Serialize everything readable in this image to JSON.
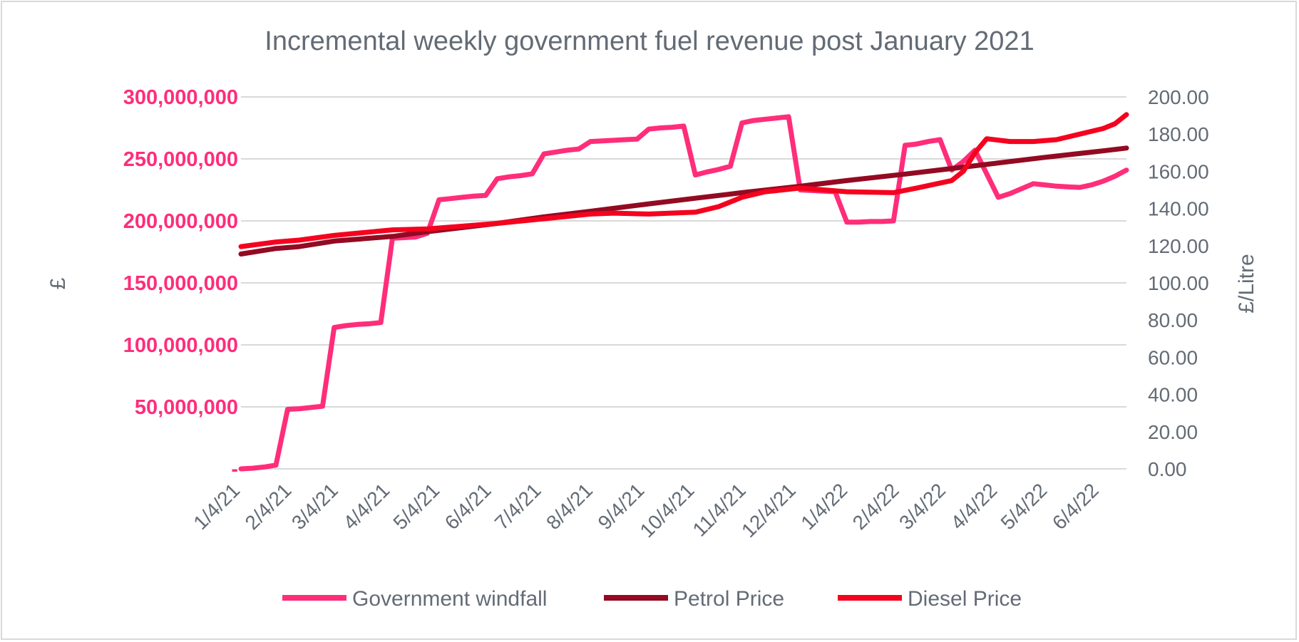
{
  "colors": {
    "windfall": "#ff2d7a",
    "petrol": "#930a22",
    "diesel": "#f4031f",
    "text": "#636b75",
    "grid": "#d9d9d9"
  },
  "chart_data": {
    "type": "line",
    "title": "Incremental weekly government fuel revenue post January 2021",
    "ylabel": "£",
    "y2label": "£/Litre",
    "ylim": [
      0,
      300000000
    ],
    "y2lim": [
      0,
      200
    ],
    "grid": true,
    "legend_position": "bottom",
    "x_ticks": [
      "1/4/21",
      "2/4/21",
      "3/4/21",
      "4/4/21",
      "5/4/21",
      "6/4/21",
      "7/4/21",
      "8/4/21",
      "9/4/21",
      "10/4/21",
      "11/4/21",
      "12/4/21",
      "1/4/22",
      "2/4/22",
      "3/4/22",
      "4/4/22",
      "5/4/22",
      "6/4/22"
    ],
    "y_ticks": [
      "-",
      "50,000,000",
      "100,000,000",
      "150,000,000",
      "200,000,000",
      "250,000,000",
      "300,000,000"
    ],
    "y_tick_values": [
      0,
      50000000,
      100000000,
      150000000,
      200000000,
      250000000,
      300000000
    ],
    "y2_ticks": [
      "0.00",
      "20.00",
      "40.00",
      "60.00",
      "80.00",
      "100.00",
      "120.00",
      "140.00",
      "160.00",
      "180.00",
      "200.00"
    ],
    "y2_tick_values": [
      0,
      20,
      40,
      60,
      80,
      100,
      120,
      140,
      160,
      180,
      200
    ],
    "series": [
      {
        "name": "Government windfall",
        "axis": "left",
        "color": "#ff2d7a",
        "points": [
          [
            "2021-01-04",
            0
          ],
          [
            "2021-01-11",
            500000
          ],
          [
            "2021-01-18",
            1500000
          ],
          [
            "2021-01-25",
            3000000
          ],
          [
            "2021-02-01",
            48000000
          ],
          [
            "2021-02-08",
            48500000
          ],
          [
            "2021-02-15",
            49500000
          ],
          [
            "2021-02-22",
            50500000
          ],
          [
            "2021-03-01",
            114000000
          ],
          [
            "2021-03-08",
            115500000
          ],
          [
            "2021-03-15",
            116500000
          ],
          [
            "2021-03-22",
            117000000
          ],
          [
            "2021-03-29",
            118000000
          ],
          [
            "2021-04-05",
            186000000
          ],
          [
            "2021-04-12",
            186500000
          ],
          [
            "2021-04-19",
            187000000
          ],
          [
            "2021-04-26",
            190000000
          ],
          [
            "2021-05-03",
            217000000
          ],
          [
            "2021-05-10",
            218000000
          ],
          [
            "2021-05-17",
            219000000
          ],
          [
            "2021-05-24",
            220000000
          ],
          [
            "2021-05-31",
            220500000
          ],
          [
            "2021-06-07",
            234000000
          ],
          [
            "2021-06-14",
            235500000
          ],
          [
            "2021-06-21",
            236500000
          ],
          [
            "2021-06-28",
            238000000
          ],
          [
            "2021-07-05",
            254000000
          ],
          [
            "2021-07-12",
            255500000
          ],
          [
            "2021-07-19",
            257000000
          ],
          [
            "2021-07-26",
            258000000
          ],
          [
            "2021-08-02",
            264000000
          ],
          [
            "2021-08-09",
            264500000
          ],
          [
            "2021-08-16",
            265000000
          ],
          [
            "2021-08-23",
            265500000
          ],
          [
            "2021-08-30",
            266000000
          ],
          [
            "2021-09-06",
            274000000
          ],
          [
            "2021-09-13",
            275000000
          ],
          [
            "2021-09-20",
            275500000
          ],
          [
            "2021-09-27",
            276500000
          ],
          [
            "2021-10-04",
            237000000
          ],
          [
            "2021-10-11",
            239500000
          ],
          [
            "2021-10-18",
            241500000
          ],
          [
            "2021-10-25",
            244000000
          ],
          [
            "2021-11-01",
            279000000
          ],
          [
            "2021-11-08",
            281000000
          ],
          [
            "2021-11-15",
            282000000
          ],
          [
            "2021-11-22",
            283000000
          ],
          [
            "2021-11-29",
            284000000
          ],
          [
            "2021-12-06",
            225000000
          ],
          [
            "2021-12-13",
            224500000
          ],
          [
            "2021-12-20",
            224000000
          ],
          [
            "2021-12-27",
            223500000
          ],
          [
            "2022-01-03",
            199000000
          ],
          [
            "2022-01-10",
            199000000
          ],
          [
            "2022-01-17",
            199500000
          ],
          [
            "2022-01-24",
            199500000
          ],
          [
            "2022-01-31",
            200000000
          ],
          [
            "2022-02-07",
            261000000
          ],
          [
            "2022-02-14",
            262000000
          ],
          [
            "2022-02-21",
            264000000
          ],
          [
            "2022-02-28",
            265500000
          ],
          [
            "2022-03-07",
            241000000
          ],
          [
            "2022-03-14",
            248000000
          ],
          [
            "2022-03-21",
            257000000
          ],
          [
            "2022-04-04",
            219000000
          ],
          [
            "2022-04-11",
            222000000
          ],
          [
            "2022-04-18",
            226000000
          ],
          [
            "2022-04-25",
            230000000
          ],
          [
            "2022-05-02",
            229000000
          ],
          [
            "2022-05-09",
            228000000
          ],
          [
            "2022-05-16",
            227500000
          ],
          [
            "2022-05-23",
            227000000
          ],
          [
            "2022-05-30",
            229000000
          ],
          [
            "2022-06-06",
            232000000
          ],
          [
            "2022-06-13",
            236000000
          ],
          [
            "2022-06-20",
            241000000
          ]
        ]
      },
      {
        "name": "Petrol Price",
        "axis": "right",
        "color": "#930a22",
        "points": [
          [
            "2021-01-04",
            115.5
          ],
          [
            "2021-01-25",
            118.5
          ],
          [
            "2021-02-08",
            119.5
          ],
          [
            "2021-03-01",
            122.5
          ],
          [
            "2021-04-05",
            125.0
          ],
          [
            "2021-04-26",
            127.5
          ],
          [
            "2021-06-07",
            132.0
          ],
          [
            "2021-07-05",
            135.5
          ],
          [
            "2021-08-02",
            138.5
          ],
          [
            "2021-09-06",
            142.5
          ],
          [
            "2021-10-04",
            145.5
          ],
          [
            "2021-11-01",
            148.5
          ],
          [
            "2021-12-06",
            152.0
          ],
          [
            "2022-01-03",
            155.0
          ],
          [
            "2022-02-07",
            158.5
          ],
          [
            "2022-03-07",
            161.5
          ],
          [
            "2022-04-04",
            164.5
          ],
          [
            "2022-05-02",
            167.5
          ],
          [
            "2022-06-06",
            171.0
          ],
          [
            "2022-06-20",
            172.5
          ]
        ]
      },
      {
        "name": "Diesel Price",
        "axis": "right",
        "color": "#f4031f",
        "points": [
          [
            "2021-01-04",
            119.5
          ],
          [
            "2021-01-25",
            122.0
          ],
          [
            "2021-02-08",
            123.0
          ],
          [
            "2021-03-01",
            125.5
          ],
          [
            "2021-04-05",
            128.5
          ],
          [
            "2021-04-26",
            129.0
          ],
          [
            "2021-06-07",
            132.0
          ],
          [
            "2021-07-05",
            134.5
          ],
          [
            "2021-08-02",
            137.0
          ],
          [
            "2021-08-16",
            137.5
          ],
          [
            "2021-09-06",
            137.0
          ],
          [
            "2021-10-04",
            138.0
          ],
          [
            "2021-10-18",
            141.0
          ],
          [
            "2021-11-01",
            146.0
          ],
          [
            "2021-11-15",
            149.0
          ],
          [
            "2021-12-06",
            151.0
          ],
          [
            "2022-01-03",
            149.0
          ],
          [
            "2022-01-31",
            148.5
          ],
          [
            "2022-02-14",
            151.0
          ],
          [
            "2022-03-07",
            155.0
          ],
          [
            "2022-03-14",
            160.0
          ],
          [
            "2022-03-21",
            170.0
          ],
          [
            "2022-03-28",
            177.5
          ],
          [
            "2022-04-11",
            176.0
          ],
          [
            "2022-04-25",
            176.0
          ],
          [
            "2022-05-09",
            177.0
          ],
          [
            "2022-05-23",
            180.0
          ],
          [
            "2022-06-06",
            183.0
          ],
          [
            "2022-06-13",
            185.5
          ],
          [
            "2022-06-20",
            190.5
          ]
        ]
      }
    ]
  }
}
